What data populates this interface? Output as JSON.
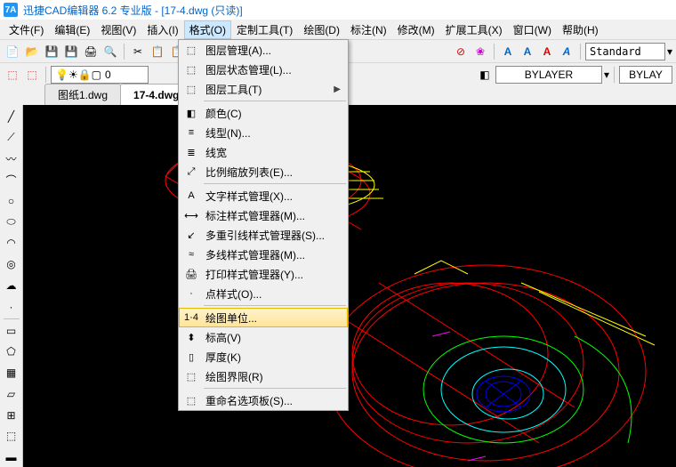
{
  "titlebar": {
    "icon_text": "7A",
    "app_title": "迅捷CAD编辑器 6.2 专业版  - [17-4.dwg (只读)]"
  },
  "menubar": {
    "items": [
      {
        "label": "文件(F)"
      },
      {
        "label": "编辑(E)"
      },
      {
        "label": "视图(V)"
      },
      {
        "label": "插入(I)"
      },
      {
        "label": "格式(O)",
        "open": true
      },
      {
        "label": "定制工具(T)"
      },
      {
        "label": "绘图(D)"
      },
      {
        "label": "标注(N)"
      },
      {
        "label": "修改(M)"
      },
      {
        "label": "扩展工具(X)"
      },
      {
        "label": "窗口(W)"
      },
      {
        "label": "帮助(H)"
      }
    ]
  },
  "dropdown": {
    "groups": [
      [
        {
          "icon": "layers",
          "label": "图层管理(A)..."
        },
        {
          "icon": "layer-state",
          "label": "图层状态管理(L)..."
        },
        {
          "icon": "layer-tools",
          "label": "图层工具(T)",
          "submenu": true
        }
      ],
      [
        {
          "icon": "color",
          "label": "颜色(C)"
        },
        {
          "icon": "linetype",
          "label": "线型(N)..."
        },
        {
          "icon": "lineweight",
          "label": "线宽"
        },
        {
          "icon": "scale",
          "label": "比例缩放列表(E)..."
        }
      ],
      [
        {
          "icon": "text-style",
          "label": "文字样式管理(X)..."
        },
        {
          "icon": "dim-style",
          "label": "标注样式管理器(M)..."
        },
        {
          "icon": "mleader",
          "label": "多重引线样式管理器(S)..."
        },
        {
          "icon": "mline",
          "label": "多线样式管理器(M)..."
        },
        {
          "icon": "print",
          "label": "打印样式管理器(Y)..."
        },
        {
          "icon": "point",
          "label": "点样式(O)..."
        }
      ],
      [
        {
          "icon": "units",
          "label": "绘图单位...",
          "highlighted": true
        },
        {
          "icon": "elevation",
          "label": "标高(V)"
        },
        {
          "icon": "thickness",
          "label": "厚度(K)"
        },
        {
          "icon": "limits",
          "label": "绘图界限(R)"
        }
      ],
      [
        {
          "icon": "rename",
          "label": "重命名选项板(S)..."
        }
      ]
    ]
  },
  "toolbar2": {
    "layer_current": "0",
    "style_current": "Standard",
    "bylayer1": "BYLAYER",
    "bylayer2": "BYLAY"
  },
  "tabs": {
    "items": [
      {
        "label": "图纸1.dwg"
      },
      {
        "label": "17-4.dwg (只读)",
        "active": true
      }
    ]
  },
  "colors": {
    "titlebar_text": "#0066cc",
    "menu_open_bg": "#cce8ff",
    "highlight_bg": "#ffe599",
    "canvas_bg": "#000000",
    "wire_red": "#ff0000",
    "wire_yellow": "#ffff00",
    "wire_cyan": "#00ffff",
    "wire_green": "#00ff00",
    "wire_blue": "#0000ff",
    "wire_magenta": "#ff00ff"
  },
  "icons": {
    "text_a": "A",
    "search": "🔍",
    "bulb": "💡",
    "sun": "☀",
    "lock": "🔒",
    "square": "▢",
    "byblock": "◧"
  }
}
